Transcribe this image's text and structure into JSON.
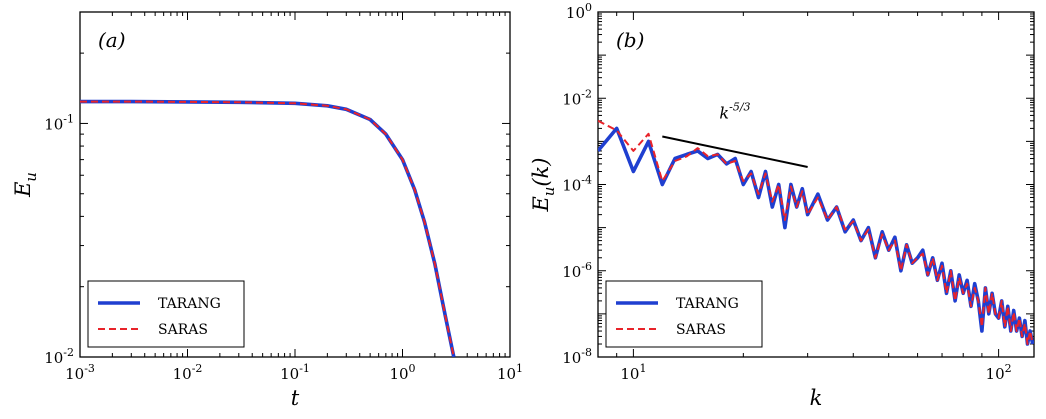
{
  "chart_data": [
    {
      "type": "line",
      "panel_label": "(a)",
      "title": "",
      "xlabel": "t",
      "ylabel": "E_u",
      "x_scale": "log",
      "y_scale": "log",
      "xlim": [
        0.001,
        10
      ],
      "ylim": [
        0.01,
        0.3
      ],
      "x_ticks": [
        "10^-3",
        "10^-2",
        "10^-1",
        "10^0",
        "10^1"
      ],
      "y_ticks": [
        "10^-1",
        "10^-2"
      ],
      "legend_position": "bottom-left",
      "series": [
        {
          "name": "TARANG",
          "color": "#1f3fd0",
          "style": "solid",
          "x": [
            0.001,
            0.003,
            0.01,
            0.03,
            0.1,
            0.2,
            0.3,
            0.5,
            0.7,
            1.0,
            1.3,
            1.6,
            2.0,
            2.5,
            3.0
          ],
          "y": [
            0.124,
            0.124,
            0.1237,
            0.1232,
            0.122,
            0.119,
            0.115,
            0.104,
            0.09,
            0.07,
            0.052,
            0.038,
            0.025,
            0.015,
            0.01
          ]
        },
        {
          "name": "SARAS",
          "color": "#e8232a",
          "style": "dashed",
          "x": [
            0.001,
            0.003,
            0.01,
            0.03,
            0.1,
            0.2,
            0.3,
            0.5,
            0.7,
            1.0,
            1.3,
            1.6,
            2.0,
            2.5,
            3.0
          ],
          "y": [
            0.124,
            0.124,
            0.1237,
            0.1232,
            0.122,
            0.119,
            0.115,
            0.104,
            0.09,
            0.07,
            0.052,
            0.038,
            0.025,
            0.015,
            0.01
          ]
        }
      ]
    },
    {
      "type": "line",
      "panel_label": "(b)",
      "title": "",
      "xlabel": "k",
      "ylabel": "E_u(k)",
      "x_scale": "log",
      "y_scale": "log",
      "xlim": [
        8,
        125
      ],
      "ylim": [
        1e-08,
        1
      ],
      "x_ticks": [
        "10^1",
        "10^2"
      ],
      "y_ticks": [
        "10^0",
        "10^-2",
        "10^-4",
        "10^-6",
        "10^-8"
      ],
      "legend_position": "bottom-left",
      "annotation": {
        "text": "k^-5/3",
        "line_x": [
          12,
          30
        ],
        "line_y": [
          0.0013,
          0.000255
        ]
      },
      "series": [
        {
          "name": "TARANG",
          "color": "#1f3fd0",
          "style": "solid",
          "x": [
            8,
            9,
            10,
            11,
            12,
            13,
            14,
            15,
            16,
            17,
            18,
            19,
            20,
            21,
            22,
            23,
            24,
            25,
            26,
            27,
            28,
            29,
            30,
            32,
            34,
            36,
            38,
            40,
            42,
            44,
            46,
            48,
            50,
            52,
            54,
            56,
            58,
            60,
            62,
            64,
            66,
            68,
            70,
            72,
            74,
            76,
            78,
            80,
            82,
            84,
            86,
            88,
            90,
            92,
            94,
            96,
            98,
            100,
            102,
            104,
            106,
            108,
            110,
            112,
            114,
            116,
            118,
            120,
            122,
            124
          ],
          "y": [
            0.0006,
            0.002,
            0.0002,
            0.001,
            0.0001,
            0.0004,
            0.0005,
            0.0006,
            0.0004,
            0.0005,
            0.0003,
            0.0004,
            0.0001,
            0.0002,
            5e-05,
            0.0002,
            3e-05,
            0.0001,
            1e-05,
            0.0001,
            3e-05,
            8e-05,
            2e-05,
            6e-05,
            1.5e-05,
            3e-05,
            8e-06,
            1.5e-05,
            5e-06,
            1e-05,
            2e-06,
            8e-06,
            3e-06,
            6e-06,
            1e-06,
            4e-06,
            1.5e-06,
            2e-06,
            3e-06,
            8e-07,
            2e-06,
            6e-07,
            1.5e-06,
            3e-07,
            1e-06,
            2e-07,
            8e-07,
            3e-07,
            6e-07,
            1.5e-07,
            5e-07,
            2e-07,
            4e-08,
            4e-07,
            1e-07,
            3e-07,
            1e-07,
            8e-08,
            2e-07,
            5e-08,
            1.5e-07,
            4e-08,
            1.2e-07,
            4e-08,
            8e-08,
            3e-08,
            7e-08,
            2e-08,
            4e-08,
            2e-08
          ]
        },
        {
          "name": "SARAS",
          "color": "#e8232a",
          "style": "dashed",
          "x": [
            8,
            9,
            10,
            11,
            12,
            13,
            14,
            15,
            16,
            17,
            18,
            19,
            20,
            21,
            22,
            23,
            24,
            25,
            26,
            27,
            28,
            29,
            30,
            32,
            34,
            36,
            38,
            40,
            42,
            44,
            46,
            48,
            50,
            52,
            54,
            56,
            58,
            60,
            62,
            64,
            66,
            68,
            70,
            72,
            74,
            76,
            78,
            80,
            82,
            84,
            86,
            88,
            90,
            92,
            94,
            96,
            98,
            100,
            102,
            104,
            106,
            108,
            110,
            112,
            114,
            116,
            118,
            120,
            122,
            124
          ],
          "y": [
            0.003,
            0.0018,
            0.0006,
            0.0015,
            0.00012,
            0.00035,
            0.00045,
            0.0007,
            0.00045,
            0.0005,
            0.0003,
            0.00035,
            0.00012,
            0.00018,
            6e-05,
            0.00018,
            4e-05,
            0.0001,
            1.5e-05,
            9e-05,
            3e-05,
            7e-05,
            2e-05,
            5e-05,
            1.5e-05,
            3e-05,
            9e-06,
            1.4e-05,
            5e-06,
            9e-06,
            2e-06,
            7e-06,
            3e-06,
            5e-06,
            1e-06,
            4e-06,
            1.5e-06,
            2e-06,
            2.5e-06,
            8e-07,
            2e-06,
            6e-07,
            1.3e-06,
            3e-07,
            1e-06,
            2e-07,
            7e-07,
            3e-07,
            5e-07,
            1.5e-07,
            4e-07,
            2e-07,
            5e-08,
            4e-07,
            1e-07,
            3e-07,
            1e-07,
            8e-08,
            2e-07,
            5e-08,
            1.5e-07,
            4e-08,
            1.1e-07,
            4e-08,
            8e-08,
            3e-08,
            6e-08,
            2e-08,
            4e-08,
            2e-08
          ]
        }
      ]
    }
  ]
}
